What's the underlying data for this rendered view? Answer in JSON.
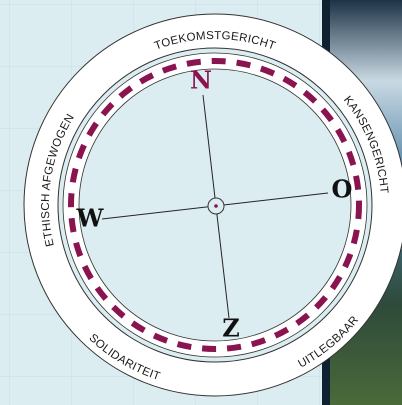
{
  "ring_labels": [
    "TOEKOMSTGERICHT",
    "KANSENGERICHT",
    "UITLEGBAAR",
    "SOLIDARITEIT",
    "ETHISCH AFGEWOGEN"
  ],
  "directions": {
    "north": "N",
    "east": "O",
    "south": "Z",
    "west": "W"
  }
}
